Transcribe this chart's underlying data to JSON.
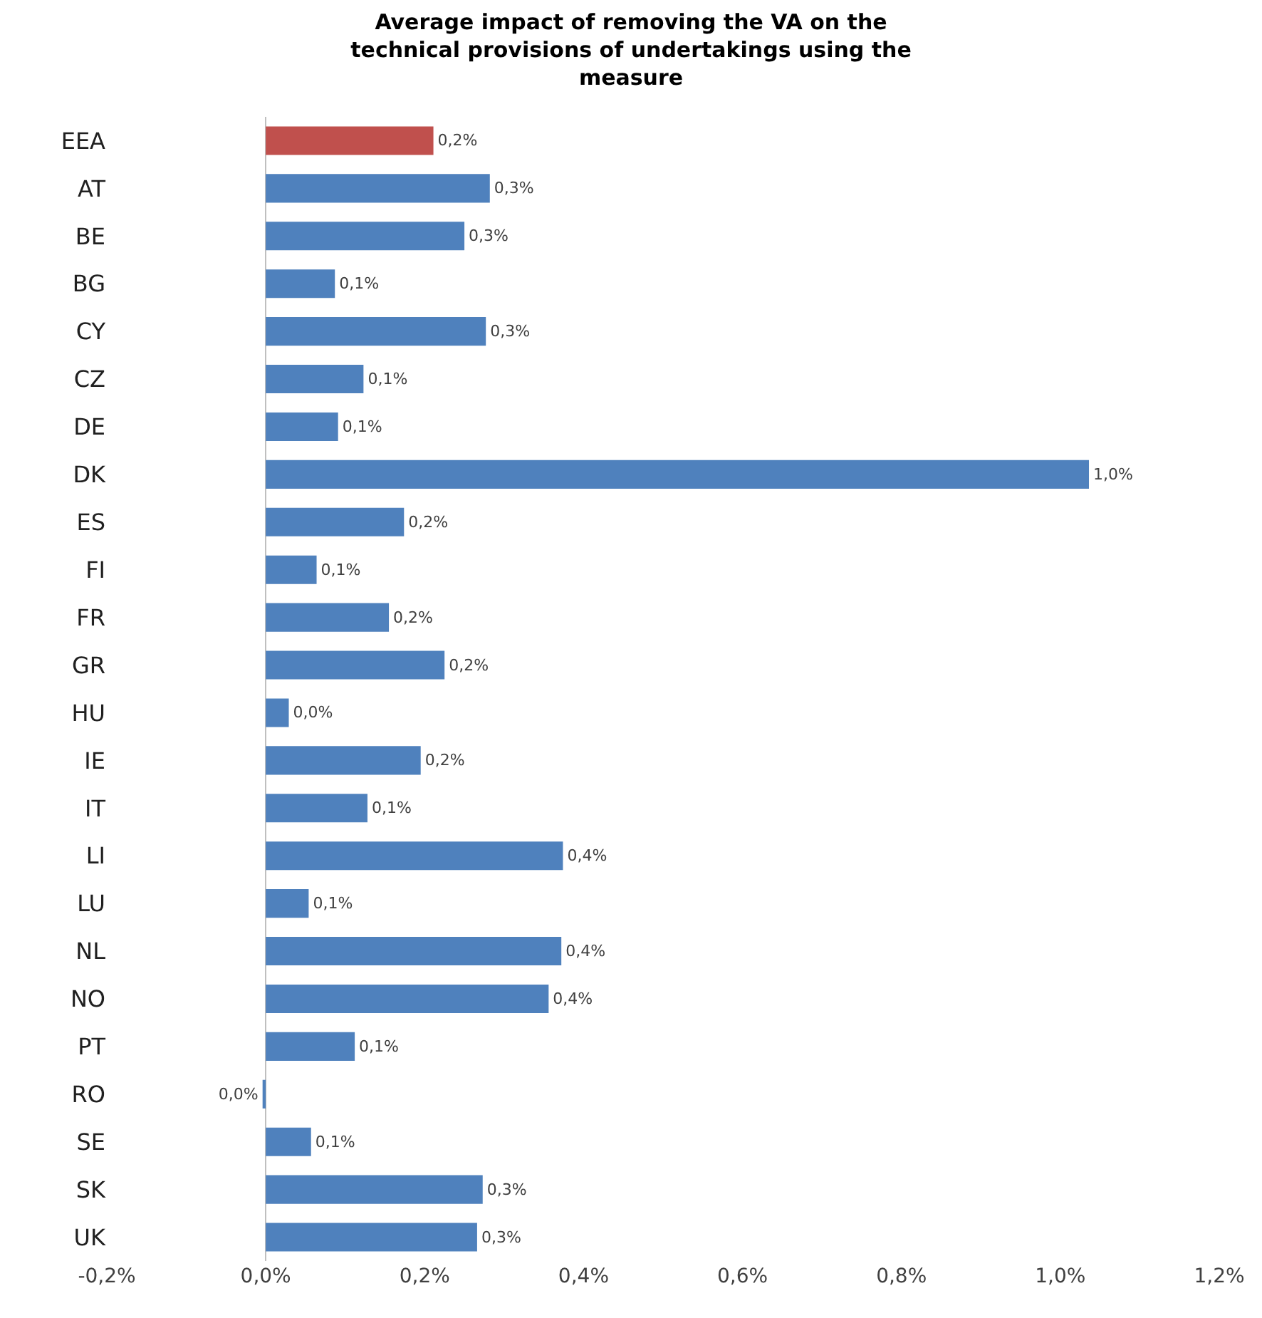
{
  "chart_data": {
    "type": "bar",
    "orientation": "horizontal",
    "title": "Average impact of removing the VA on the technical provisions of undertakings using the measure",
    "categories": [
      "EEA",
      "AT",
      "BE",
      "BG",
      "CY",
      "CZ",
      "DE",
      "DK",
      "ES",
      "FI",
      "FR",
      "GR",
      "HU",
      "IE",
      "IT",
      "LI",
      "LU",
      "NL",
      "NO",
      "PT",
      "RO",
      "SE",
      "SK",
      "UK"
    ],
    "values": [
      0.211,
      0.282,
      0.25,
      0.087,
      0.277,
      0.123,
      0.091,
      1.036,
      0.174,
      0.064,
      0.155,
      0.225,
      0.029,
      0.195,
      0.128,
      0.374,
      0.054,
      0.372,
      0.356,
      0.112,
      -0.004,
      0.057,
      0.273,
      0.266
    ],
    "value_labels": [
      "0,2%",
      "0,3%",
      "0,3%",
      "0,1%",
      "0,3%",
      "0,1%",
      "0,1%",
      "1,0%",
      "0,2%",
      "0,1%",
      "0,2%",
      "0,2%",
      "0,0%",
      "0,2%",
      "0,1%",
      "0,4%",
      "0,1%",
      "0,4%",
      "0,4%",
      "0,1%",
      "0,0%",
      "0,1%",
      "0,3%",
      "0,3%"
    ],
    "colors": [
      "#c0504d",
      "#4f81bd",
      "#4f81bd",
      "#4f81bd",
      "#4f81bd",
      "#4f81bd",
      "#4f81bd",
      "#4f81bd",
      "#4f81bd",
      "#4f81bd",
      "#4f81bd",
      "#4f81bd",
      "#4f81bd",
      "#4f81bd",
      "#4f81bd",
      "#4f81bd",
      "#4f81bd",
      "#4f81bd",
      "#4f81bd",
      "#4f81bd",
      "#4f81bd",
      "#4f81bd",
      "#4f81bd",
      "#4f81bd"
    ],
    "xlim": [
      -0.2,
      1.2
    ],
    "xticks": [
      {
        "value": -0.2,
        "label": "-0,2%"
      },
      {
        "value": 0,
        "label": "0,0%"
      },
      {
        "value": 0.2,
        "label": "0,2%"
      },
      {
        "value": 0.4,
        "label": "0,4%"
      },
      {
        "value": 0.6,
        "label": "0,6%"
      },
      {
        "value": 0.8,
        "label": "0,8%"
      },
      {
        "value": 1.0,
        "label": "1,0%"
      },
      {
        "value": 1.2,
        "label": "1,2%"
      }
    ],
    "legend": false
  }
}
